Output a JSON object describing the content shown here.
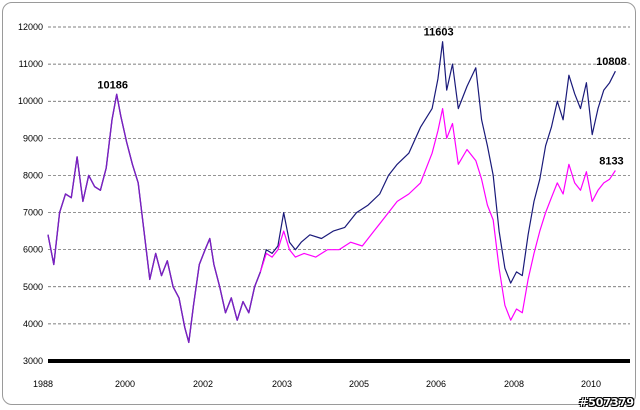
{
  "chart_data": {
    "type": "line",
    "ylim": [
      3000,
      12000
    ],
    "y_ticks": [
      12000,
      11000,
      10000,
      9000,
      8000,
      7000,
      6000,
      5000,
      4000,
      3000
    ],
    "x_tick_labels": [
      "1988",
      "2000",
      "2002",
      "2003",
      "2005",
      "2006",
      "2008",
      "2010"
    ],
    "grid": "horizontal dashed",
    "legend": "none",
    "colors": {
      "series_dark": "#1a1a7a",
      "series_light": "#ff00ff",
      "common": "#7a20c0"
    },
    "x_scale": [
      0,
      100
    ],
    "series": [
      {
        "color": "#1a1a7a",
        "points": [
          [
            0,
            6400
          ],
          [
            1,
            5600
          ],
          [
            2,
            7000
          ],
          [
            3,
            7500
          ],
          [
            4,
            7400
          ],
          [
            5,
            8500
          ],
          [
            6,
            7300
          ],
          [
            7,
            8000
          ],
          [
            8,
            7700
          ],
          [
            9,
            7600
          ],
          [
            10,
            8200
          ],
          [
            11,
            9500
          ],
          [
            11.8,
            10186
          ],
          [
            12.5,
            9600
          ],
          [
            13.5,
            8900
          ],
          [
            14.5,
            8300
          ],
          [
            15.5,
            7800
          ],
          [
            16.5,
            6500
          ],
          [
            17.5,
            5200
          ],
          [
            18.5,
            5900
          ],
          [
            19.5,
            5300
          ],
          [
            20.5,
            5700
          ],
          [
            21.5,
            5000
          ],
          [
            22.5,
            4700
          ],
          [
            23.5,
            3900
          ],
          [
            24.2,
            3500
          ],
          [
            25,
            4500
          ],
          [
            26,
            5600
          ],
          [
            27,
            6000
          ],
          [
            27.8,
            6300
          ],
          [
            28.5,
            5600
          ],
          [
            29.5,
            5000
          ],
          [
            30.5,
            4300
          ],
          [
            31.5,
            4700
          ],
          [
            32.5,
            4100
          ],
          [
            33.5,
            4600
          ],
          [
            34.5,
            4300
          ],
          [
            35.5,
            5000
          ],
          [
            36.5,
            5400
          ],
          [
            37.5,
            6000
          ],
          [
            38.5,
            5900
          ],
          [
            39.5,
            6100
          ],
          [
            40.5,
            7000
          ],
          [
            41.5,
            6200
          ],
          [
            42.5,
            6000
          ],
          [
            43.5,
            6200
          ],
          [
            45,
            6400
          ],
          [
            47,
            6300
          ],
          [
            49,
            6500
          ],
          [
            51,
            6600
          ],
          [
            53,
            7000
          ],
          [
            55,
            7200
          ],
          [
            57,
            7500
          ],
          [
            58.5,
            8000
          ],
          [
            60,
            8300
          ],
          [
            62,
            8600
          ],
          [
            64,
            9300
          ],
          [
            66,
            9800
          ],
          [
            67,
            10600
          ],
          [
            67.8,
            11603
          ],
          [
            68.5,
            10300
          ],
          [
            69.5,
            11000
          ],
          [
            70.5,
            9800
          ],
          [
            72,
            10400
          ],
          [
            73.5,
            10900
          ],
          [
            74.5,
            9500
          ],
          [
            75.5,
            8800
          ],
          [
            76.5,
            8000
          ],
          [
            77.5,
            6500
          ],
          [
            78.5,
            5500
          ],
          [
            79.5,
            5100
          ],
          [
            80.5,
            5400
          ],
          [
            81.5,
            5300
          ],
          [
            82.5,
            6400
          ],
          [
            83.5,
            7300
          ],
          [
            84.5,
            7900
          ],
          [
            85.5,
            8800
          ],
          [
            86.5,
            9300
          ],
          [
            87.5,
            10000
          ],
          [
            88.5,
            9500
          ],
          [
            89.5,
            10700
          ],
          [
            90.5,
            10200
          ],
          [
            91.5,
            9800
          ],
          [
            92.5,
            10500
          ],
          [
            93.5,
            9100
          ],
          [
            94.5,
            9800
          ],
          [
            95.5,
            10300
          ],
          [
            96.5,
            10500
          ],
          [
            97.5,
            10808
          ]
        ]
      },
      {
        "color": "#ff00ff",
        "points": [
          [
            36.5,
            5400
          ],
          [
            37.5,
            5900
          ],
          [
            38.5,
            5800
          ],
          [
            39.5,
            6000
          ],
          [
            40.5,
            6500
          ],
          [
            41.5,
            6000
          ],
          [
            42.5,
            5800
          ],
          [
            44,
            5900
          ],
          [
            46,
            5800
          ],
          [
            48,
            6000
          ],
          [
            50,
            6000
          ],
          [
            52,
            6200
          ],
          [
            54,
            6100
          ],
          [
            56,
            6500
          ],
          [
            58,
            6900
          ],
          [
            60,
            7300
          ],
          [
            62,
            7500
          ],
          [
            64,
            7800
          ],
          [
            66,
            8600
          ],
          [
            67,
            9200
          ],
          [
            67.8,
            9800
          ],
          [
            68.5,
            9000
          ],
          [
            69.5,
            9400
          ],
          [
            70.5,
            8300
          ],
          [
            72,
            8700
          ],
          [
            73.5,
            8400
          ],
          [
            74.5,
            7900
          ],
          [
            75.5,
            7200
          ],
          [
            76.5,
            6800
          ],
          [
            77.5,
            5500
          ],
          [
            78.5,
            4500
          ],
          [
            79.5,
            4100
          ],
          [
            80.5,
            4400
          ],
          [
            81.5,
            4300
          ],
          [
            82.5,
            5200
          ],
          [
            83.5,
            5900
          ],
          [
            84.5,
            6500
          ],
          [
            85.5,
            7000
          ],
          [
            86.5,
            7400
          ],
          [
            87.5,
            7800
          ],
          [
            88.5,
            7500
          ],
          [
            89.5,
            8300
          ],
          [
            90.5,
            7800
          ],
          [
            91.5,
            7600
          ],
          [
            92.5,
            8100
          ],
          [
            93.5,
            7300
          ],
          [
            94.5,
            7600
          ],
          [
            95.5,
            7800
          ],
          [
            96.5,
            7900
          ],
          [
            97.5,
            8133
          ]
        ]
      }
    ],
    "annotations": [
      {
        "text": "10186",
        "x": 11.8,
        "y": 10186
      },
      {
        "text": "11603",
        "x": 67.8,
        "y": 11603
      },
      {
        "text": "10808",
        "x": 97.5,
        "y": 10808
      },
      {
        "text": "8133",
        "x": 97.5,
        "y": 8133
      }
    ],
    "watermark": "#507379"
  }
}
